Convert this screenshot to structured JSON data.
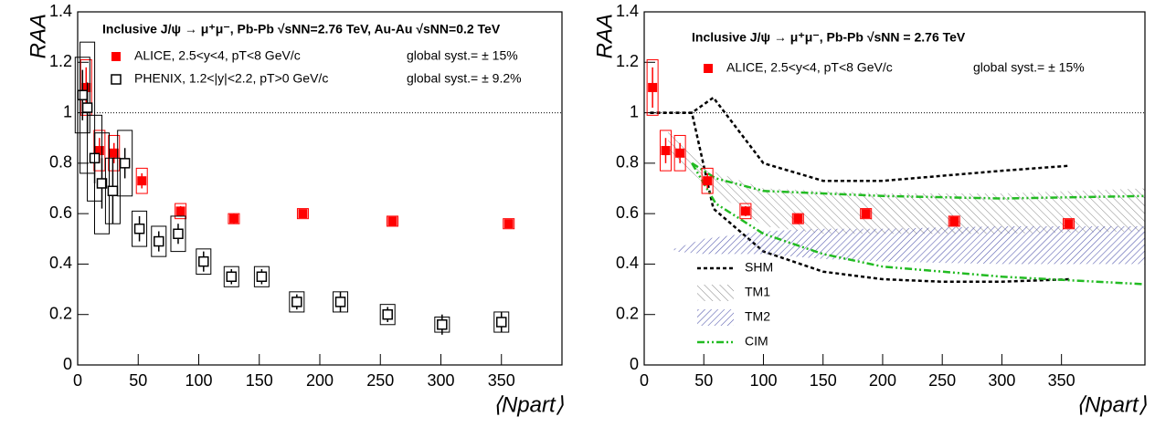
{
  "chart_data": [
    {
      "type": "scatter",
      "title": "Inclusive J/ψ → μ⁺μ⁻, Pb-Pb √sNN=2.76 TeV, Au-Au √sNN=0.2 TeV",
      "y_label": "RAA",
      "x_label": "⟨Npart⟩",
      "xlim": [
        0,
        400
      ],
      "ylim": [
        0,
        1.4
      ],
      "xticks": [
        0,
        50,
        100,
        150,
        200,
        250,
        300,
        350
      ],
      "yticks": [
        0,
        0.2,
        0.4,
        0.6,
        0.8,
        1,
        1.2,
        1.4
      ],
      "reference_line": 1,
      "series": [
        {
          "name": "ALICE, 2.5<y<4, pT<8 GeV/c",
          "global_syst": "global syst.= ± 15%",
          "color": "#ff0000",
          "marker": "filled-square",
          "x": [
            7,
            18,
            30,
            53,
            85,
            129,
            186,
            260,
            356
          ],
          "values": [
            1.1,
            0.85,
            0.84,
            0.73,
            0.61,
            0.58,
            0.6,
            0.57,
            0.56
          ],
          "errors": [
            0.08,
            0.05,
            0.04,
            0.03,
            0.02,
            0.02,
            0.01,
            0.01,
            0.01
          ],
          "syst": [
            0.11,
            0.08,
            0.07,
            0.05,
            0.03,
            0.02,
            0.02,
            0.02,
            0.02
          ]
        },
        {
          "name": "PHENIX, 1.2<|y|<2.2, pT>0 GeV/c",
          "global_syst": "global syst.= ± 9.2%",
          "color": "#000000",
          "marker": "open-square",
          "x": [
            4,
            8,
            14,
            20,
            29,
            39,
            51,
            67,
            83,
            104,
            127,
            152,
            181,
            217,
            256,
            301,
            350
          ],
          "values": [
            1.07,
            1.02,
            0.82,
            0.72,
            0.69,
            0.8,
            0.54,
            0.49,
            0.52,
            0.41,
            0.35,
            0.35,
            0.25,
            0.25,
            0.2,
            0.16,
            0.17
          ],
          "errors": [
            0.1,
            0.1,
            0.1,
            0.1,
            0.13,
            0.06,
            0.05,
            0.04,
            0.04,
            0.04,
            0.03,
            0.03,
            0.03,
            0.04,
            0.03,
            0.04,
            0.04
          ],
          "syst": [
            0.15,
            0.26,
            0.17,
            0.2,
            0.13,
            0.13,
            0.07,
            0.06,
            0.07,
            0.05,
            0.04,
            0.04,
            0.04,
            0.04,
            0.04,
            0.03,
            0.04
          ]
        }
      ]
    },
    {
      "type": "scatter",
      "title": "Inclusive J/ψ → μ⁺μ⁻, Pb-Pb √sNN = 2.76 TeV",
      "y_label": "RAA",
      "x_label": "⟨Npart⟩",
      "xlim": [
        0,
        420
      ],
      "ylim": [
        0,
        1.4
      ],
      "xticks": [
        0,
        50,
        100,
        150,
        200,
        250,
        300,
        350
      ],
      "yticks": [
        0,
        0.2,
        0.4,
        0.6,
        0.8,
        1,
        1.2,
        1.4
      ],
      "reference_line": 1,
      "series": [
        {
          "name": "ALICE, 2.5<y<4, pT<8 GeV/c",
          "global_syst": "global syst.= ± 15%",
          "color": "#ff0000",
          "marker": "filled-square",
          "x": [
            7,
            18,
            30,
            53,
            85,
            129,
            186,
            260,
            356
          ],
          "values": [
            1.1,
            0.85,
            0.84,
            0.73,
            0.61,
            0.58,
            0.6,
            0.57,
            0.56
          ],
          "errors": [
            0.08,
            0.05,
            0.04,
            0.03,
            0.02,
            0.02,
            0.01,
            0.01,
            0.01
          ],
          "syst": [
            0.11,
            0.08,
            0.07,
            0.05,
            0.03,
            0.02,
            0.02,
            0.02,
            0.02
          ]
        }
      ],
      "models": [
        {
          "name": "SHM",
          "color": "#000000",
          "style": "dashed",
          "x": [
            5,
            40,
            58,
            100,
            150,
            200,
            250,
            300,
            357
          ],
          "upper": [
            1.0,
            1.0,
            1.06,
            0.8,
            0.73,
            0.73,
            0.75,
            0.77,
            0.79
          ],
          "lower": [
            1.0,
            1.0,
            0.62,
            0.45,
            0.37,
            0.34,
            0.33,
            0.33,
            0.34
          ]
        },
        {
          "name": "TM1",
          "color": "#888888",
          "style": "hatch",
          "x": [
            20,
            50,
            100,
            150,
            200,
            300,
            420
          ],
          "upper": [
            0.95,
            0.78,
            0.7,
            0.69,
            0.68,
            0.68,
            0.7
          ],
          "lower": [
            0.85,
            0.72,
            0.55,
            0.52,
            0.52,
            0.52,
            0.53
          ]
        },
        {
          "name": "TM2",
          "color": "#5a5fb0",
          "style": "hatch",
          "x": [
            25,
            50,
            100,
            150,
            200,
            300,
            420
          ],
          "upper": [
            0.46,
            0.5,
            0.53,
            0.54,
            0.54,
            0.55,
            0.55
          ],
          "lower": [
            0.45,
            0.44,
            0.44,
            0.42,
            0.41,
            0.4,
            0.4
          ]
        },
        {
          "name": "CIM",
          "color": "#22bb22",
          "style": "dashdot",
          "x": [
            40,
            60,
            100,
            150,
            200,
            300,
            420
          ],
          "upper": [
            0.8,
            0.74,
            0.69,
            0.68,
            0.67,
            0.66,
            0.67
          ],
          "lower": [
            0.8,
            0.64,
            0.52,
            0.44,
            0.39,
            0.35,
            0.32
          ]
        }
      ]
    }
  ]
}
